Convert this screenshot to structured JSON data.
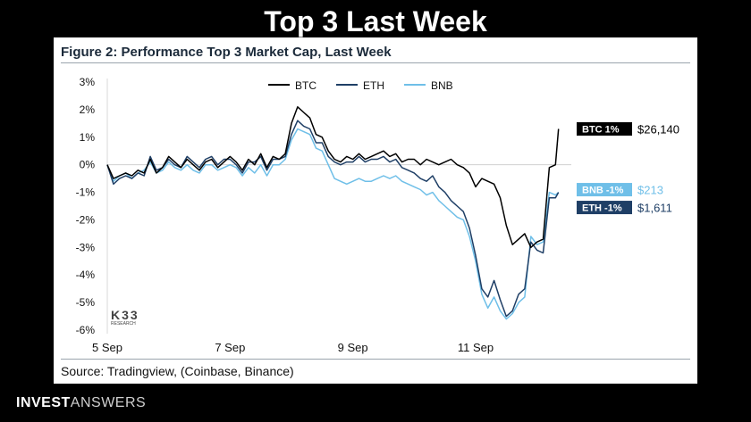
{
  "slide_title": "Top 3 Last Week",
  "figure_title": "Figure 2: Performance Top 3 Market Cap, Last Week",
  "source": "Source: Tradingview, (Coinbase, Binance)",
  "watermark": {
    "big": "K33",
    "small": "RESEARCH"
  },
  "brand": {
    "bold": "INVEST",
    "light": "ANSWERS"
  },
  "colors": {
    "BTC": "#000000",
    "ETH": "#1f3f66",
    "BNB": "#6fbfe8"
  },
  "chart_data": {
    "type": "line",
    "x_unit": "days since 5 Sep",
    "x_ticks": [
      {
        "x": 0,
        "label": "5 Sep"
      },
      {
        "x": 2,
        "label": "7 Sep"
      },
      {
        "x": 4,
        "label": "9 Sep"
      },
      {
        "x": 6,
        "label": "11 Sep"
      }
    ],
    "xlim": [
      0,
      7.5
    ],
    "ylim": [
      -6,
      3
    ],
    "y_ticks": [
      {
        "v": 3,
        "label": "3%"
      },
      {
        "v": 2,
        "label": "2%"
      },
      {
        "v": 1,
        "label": "1%"
      },
      {
        "v": 0,
        "label": "0%"
      },
      {
        "v": -1,
        "label": "-1%"
      },
      {
        "v": -2,
        "label": "-2%"
      },
      {
        "v": -3,
        "label": "-3%"
      },
      {
        "v": -4,
        "label": "-4%"
      },
      {
        "v": -5,
        "label": "-5%"
      },
      {
        "v": -6,
        "label": "-6%"
      }
    ],
    "legend": [
      "BTC",
      "ETH",
      "BNB"
    ],
    "series": [
      {
        "name": "BTC",
        "x": [
          0,
          0.1,
          0.2,
          0.3,
          0.4,
          0.5,
          0.6,
          0.7,
          0.8,
          0.9,
          1.0,
          1.1,
          1.2,
          1.3,
          1.4,
          1.5,
          1.6,
          1.7,
          1.8,
          1.9,
          2.0,
          2.1,
          2.2,
          2.3,
          2.4,
          2.5,
          2.6,
          2.7,
          2.8,
          2.9,
          3.0,
          3.1,
          3.2,
          3.3,
          3.4,
          3.5,
          3.6,
          3.7,
          3.8,
          3.9,
          4.0,
          4.1,
          4.2,
          4.3,
          4.4,
          4.5,
          4.6,
          4.7,
          4.8,
          4.9,
          5.0,
          5.1,
          5.2,
          5.3,
          5.4,
          5.5,
          5.6,
          5.7,
          5.8,
          5.9,
          6.0,
          6.1,
          6.2,
          6.3,
          6.4,
          6.5,
          6.6,
          6.7,
          6.8,
          6.9,
          7.0,
          7.1,
          7.2,
          7.3,
          7.35
        ],
        "y": [
          0,
          -0.5,
          -0.4,
          -0.3,
          -0.4,
          -0.2,
          -0.3,
          0.2,
          -0.3,
          -0.1,
          0.3,
          0.1,
          -0.1,
          0.2,
          0,
          -0.2,
          0.1,
          0.2,
          -0.1,
          0.1,
          0.3,
          0.1,
          -0.2,
          0.2,
          0,
          0.4,
          -0.1,
          0.3,
          0.2,
          0.4,
          1.5,
          2.1,
          1.9,
          1.7,
          1.1,
          1.0,
          0.5,
          0.2,
          0.1,
          0.3,
          0.2,
          0.4,
          0.2,
          0.3,
          0.4,
          0.5,
          0.3,
          0.4,
          0.1,
          0.2,
          0.2,
          0,
          0.2,
          0.1,
          0,
          0.1,
          0.2,
          0,
          -0.1,
          -0.3,
          -0.8,
          -0.5,
          -0.6,
          -0.7,
          -1.2,
          -2.2,
          -2.9,
          -2.7,
          -2.5,
          -3.0,
          -2.8,
          -2.7,
          -0.1,
          0,
          1.3
        ]
      },
      {
        "name": "ETH",
        "x": [
          0,
          0.1,
          0.2,
          0.3,
          0.4,
          0.5,
          0.6,
          0.7,
          0.8,
          0.9,
          1.0,
          1.1,
          1.2,
          1.3,
          1.4,
          1.5,
          1.6,
          1.7,
          1.8,
          1.9,
          2.0,
          2.1,
          2.2,
          2.3,
          2.4,
          2.5,
          2.6,
          2.7,
          2.8,
          2.9,
          3.0,
          3.1,
          3.2,
          3.3,
          3.4,
          3.5,
          3.6,
          3.7,
          3.8,
          3.9,
          4.0,
          4.1,
          4.2,
          4.3,
          4.4,
          4.5,
          4.6,
          4.7,
          4.8,
          4.9,
          5.0,
          5.1,
          5.2,
          5.3,
          5.4,
          5.5,
          5.6,
          5.7,
          5.8,
          5.9,
          6.0,
          6.1,
          6.2,
          6.3,
          6.4,
          6.5,
          6.6,
          6.7,
          6.8,
          6.9,
          7.0,
          7.1,
          7.2,
          7.3,
          7.35
        ],
        "y": [
          0,
          -0.7,
          -0.5,
          -0.4,
          -0.5,
          -0.3,
          -0.4,
          0.3,
          -0.2,
          -0.1,
          0.2,
          0,
          -0.1,
          0.3,
          0.1,
          -0.1,
          0.2,
          0.3,
          0,
          0.2,
          0.2,
          0,
          -0.3,
          0.1,
          0.1,
          0.3,
          -0.2,
          0.2,
          0.2,
          0.3,
          1.1,
          1.6,
          1.4,
          1.3,
          0.8,
          0.8,
          0.3,
          0.1,
          0,
          0.1,
          0.1,
          0.3,
          0.1,
          0.2,
          0.2,
          0.3,
          0.1,
          0.2,
          -0.1,
          -0.2,
          -0.3,
          -0.5,
          -0.6,
          -0.4,
          -0.8,
          -1.0,
          -1.3,
          -1.5,
          -1.7,
          -2.3,
          -3.3,
          -4.5,
          -4.8,
          -4.2,
          -4.9,
          -5.5,
          -5.3,
          -4.7,
          -4.5,
          -2.8,
          -3.1,
          -3.2,
          -1.2,
          -1.2,
          -1.0
        ]
      },
      {
        "name": "BNB",
        "x": [
          0,
          0.1,
          0.2,
          0.3,
          0.4,
          0.5,
          0.6,
          0.7,
          0.8,
          0.9,
          1.0,
          1.1,
          1.2,
          1.3,
          1.4,
          1.5,
          1.6,
          1.7,
          1.8,
          1.9,
          2.0,
          2.1,
          2.2,
          2.3,
          2.4,
          2.5,
          2.6,
          2.7,
          2.8,
          2.9,
          3.0,
          3.1,
          3.2,
          3.3,
          3.4,
          3.5,
          3.6,
          3.7,
          3.8,
          3.9,
          4.0,
          4.1,
          4.2,
          4.3,
          4.4,
          4.5,
          4.6,
          4.7,
          4.8,
          4.9,
          5.0,
          5.1,
          5.2,
          5.3,
          5.4,
          5.5,
          5.6,
          5.7,
          5.8,
          5.9,
          6.0,
          6.1,
          6.2,
          6.3,
          6.4,
          6.5,
          6.6,
          6.7,
          6.8,
          6.9,
          7.0,
          7.1,
          7.2,
          7.3,
          7.35
        ],
        "y": [
          0,
          -0.6,
          -0.4,
          -0.3,
          -0.5,
          -0.3,
          -0.2,
          0.1,
          -0.3,
          -0.2,
          0.1,
          -0.1,
          -0.2,
          0,
          -0.2,
          -0.3,
          0,
          0,
          -0.2,
          -0.1,
          0,
          -0.1,
          -0.4,
          -0.1,
          -0.3,
          0,
          -0.4,
          0,
          0,
          0.2,
          0.9,
          1.3,
          1.2,
          1.1,
          0.6,
          0.5,
          0,
          -0.5,
          -0.6,
          -0.7,
          -0.6,
          -0.5,
          -0.6,
          -0.6,
          -0.5,
          -0.4,
          -0.5,
          -0.4,
          -0.6,
          -0.7,
          -0.8,
          -0.9,
          -1.1,
          -1.0,
          -1.3,
          -1.5,
          -1.7,
          -1.9,
          -2.0,
          -2.6,
          -3.5,
          -4.7,
          -5.2,
          -4.8,
          -5.3,
          -5.6,
          -5.4,
          -5.0,
          -4.8,
          -2.6,
          -2.9,
          -2.8,
          -1.0,
          -1.1,
          -1.0
        ]
      }
    ],
    "end_labels": [
      {
        "name": "BTC",
        "tag": "BTC 1%",
        "price": "$26,140"
      },
      {
        "name": "BNB",
        "tag": "BNB -1%",
        "price": "$213"
      },
      {
        "name": "ETH",
        "tag": "ETH -1%",
        "price": "$1,611"
      }
    ]
  }
}
